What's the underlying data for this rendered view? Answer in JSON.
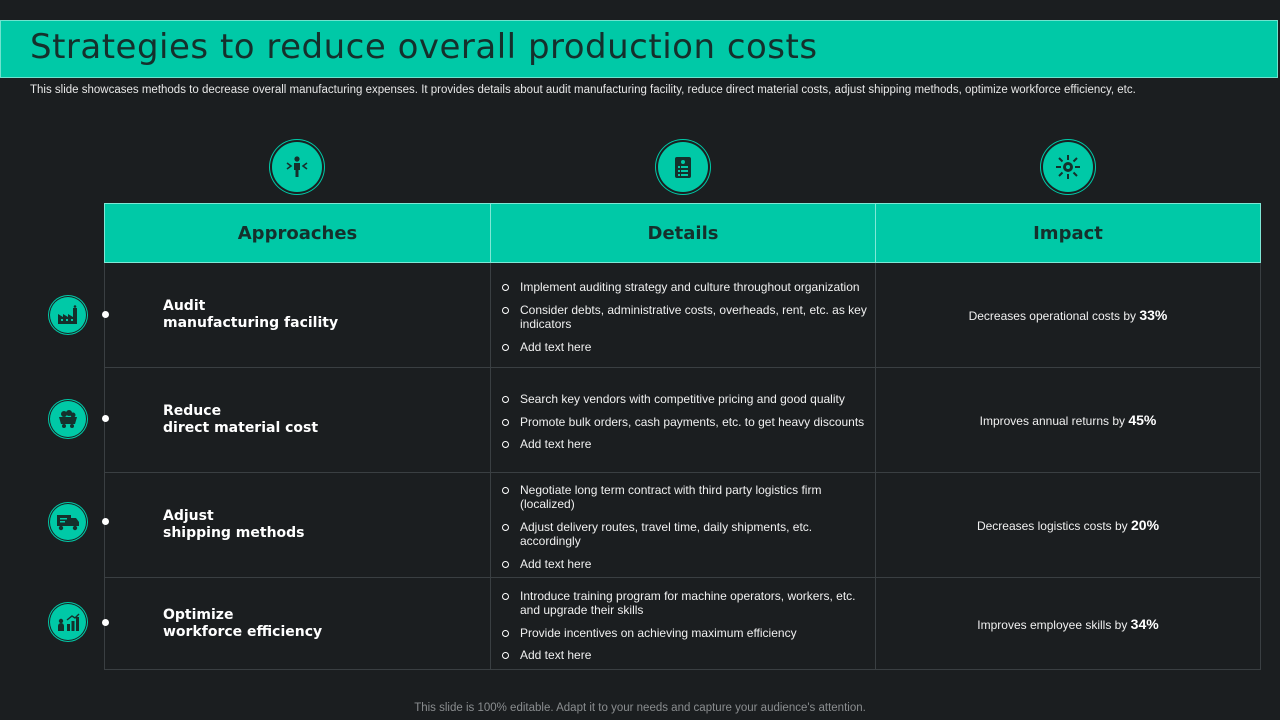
{
  "header": {
    "title": "Strategies to reduce overall production costs",
    "subtitle": "This slide showcases methods to decrease overall manufacturing expenses. It provides details about audit manufacturing facility, reduce direct material costs, adjust shipping methods, optimize workforce efficiency, etc."
  },
  "columns": [
    {
      "label": "Approaches",
      "icon": "person-arrows-icon"
    },
    {
      "label": "Details",
      "icon": "clipboard-list-icon"
    },
    {
      "label": "Impact",
      "icon": "gear-arrows-icon"
    }
  ],
  "rows": [
    {
      "icon": "factory-icon",
      "approach_line1": "Audit",
      "approach_line2": "manufacturing facility",
      "details": [
        "Implement auditing strategy and culture throughout organization",
        "Consider debts, administrative costs, overheads, rent, etc.  as key indicators",
        "Add text here"
      ],
      "impact_text": "Decreases operational costs by ",
      "impact_value": "33%"
    },
    {
      "icon": "mine-cart-icon",
      "approach_line1": "Reduce",
      "approach_line2": "direct material cost",
      "details": [
        "Search key vendors with competitive pricing and good quality",
        "Promote bulk orders, cash payments, etc. to get heavy discounts",
        "Add text here"
      ],
      "impact_text": "Improves annual returns by ",
      "impact_value": "45%"
    },
    {
      "icon": "delivery-truck-icon",
      "approach_line1": "Adjust",
      "approach_line2": "shipping methods",
      "details": [
        "Negotiate long term contract with third party logistics firm (localized)",
        "Adjust delivery routes, travel time, daily shipments, etc. accordingly",
        "Add text here"
      ],
      "impact_text": "Decreases logistics costs by ",
      "impact_value": "20%"
    },
    {
      "icon": "workforce-chart-icon",
      "approach_line1": "Optimize",
      "approach_line2": "workforce efficiency",
      "details": [
        "Introduce training program for machine operators, workers, etc. and upgrade their skills",
        "Provide incentives on achieving maximum efficiency",
        "Add text here"
      ],
      "impact_text": "Improves employee skills by ",
      "impact_value": "34%"
    }
  ],
  "footer": "This slide is 100% editable. Adapt it to your needs and capture your audience's attention.",
  "colors": {
    "accent": "#00c9a7",
    "background": "#1b1e20",
    "dark_text": "#15302c"
  }
}
